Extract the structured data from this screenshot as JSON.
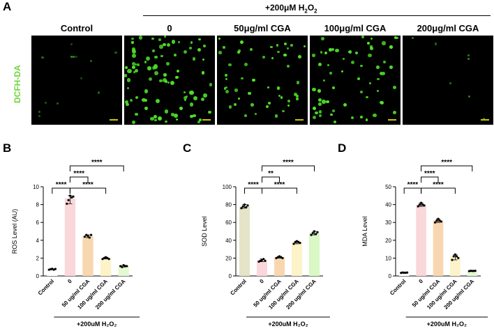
{
  "panel_a": {
    "letter": "A",
    "treatment_label": "+200μM H",
    "treatment_sub": "2",
    "treatment_tail": "O",
    "treatment_sub2": "2",
    "stain_label": "DCFH-DA",
    "columns": [
      "Control",
      "0",
      "50μg/ml CGA",
      "100μg/ml CGA",
      "200μg/ml CGA"
    ],
    "cell_density": [
      0.15,
      1.0,
      0.55,
      0.7,
      0.08
    ]
  },
  "panel_b_letter": "B",
  "panel_c_letter": "C",
  "panel_d_letter": "D",
  "chart_data": [
    {
      "type": "bar",
      "ylabel": "ROS Level (AU)",
      "categories": [
        "Control",
        "0",
        "50 ug/ml CGA",
        "100 ug/ml CGA",
        "200 ug/ml CGA"
      ],
      "values": [
        0.75,
        8.7,
        4.5,
        2.0,
        1.1
      ],
      "points": [
        [
          0.7,
          0.75,
          0.8,
          0.7,
          0.78
        ],
        [
          8.1,
          8.5,
          9.0,
          8.8,
          8.9
        ],
        [
          4.4,
          4.6,
          4.5,
          4.3,
          4.6
        ],
        [
          1.9,
          2.0,
          2.1,
          2.0,
          1.9
        ],
        [
          1.1,
          1.0,
          1.2,
          1.1,
          1.1
        ]
      ],
      "bar_colors": [
        "#ffffff",
        "#fad7da",
        "#f8d7b0",
        "#fdf3c8",
        "#e4f9d2"
      ],
      "ylim": [
        0,
        10
      ],
      "yticks": [
        0,
        2,
        4,
        6,
        8,
        10
      ],
      "treatment": "+200uM H₂O₂",
      "significance": [
        {
          "from": 0,
          "to": 1,
          "label": "****"
        },
        {
          "from": 1,
          "to": 2,
          "label": "****"
        },
        {
          "from": 1,
          "to": 3,
          "label": "****"
        },
        {
          "from": 1,
          "to": 4,
          "label": "****"
        }
      ]
    },
    {
      "type": "bar",
      "ylabel": "SOD Level",
      "categories": [
        "Control",
        "0",
        "50 ug/ml CGA",
        "100 ug/ml CGA",
        "200 ug/ml CGA"
      ],
      "values": [
        78,
        17.5,
        21,
        38,
        48
      ],
      "points": [
        [
          76,
          78,
          80,
          77,
          79
        ],
        [
          16,
          17,
          18,
          19,
          17
        ],
        [
          20,
          21,
          22,
          21,
          20
        ],
        [
          36,
          38,
          39,
          38,
          37
        ],
        [
          46,
          48,
          50,
          47,
          49
        ]
      ],
      "bar_colors": [
        "#e5e3c8",
        "#fad7da",
        "#f8d7b0",
        "#fdf3c8",
        "#d9f8c4"
      ],
      "ylim": [
        0,
        100
      ],
      "yticks": [
        0,
        20,
        40,
        60,
        80,
        100
      ],
      "treatment": "+200uM H₂O₂",
      "significance": [
        {
          "from": 0,
          "to": 1,
          "label": "****"
        },
        {
          "from": 1,
          "to": 2,
          "label": "**"
        },
        {
          "from": 1,
          "to": 3,
          "label": "****"
        },
        {
          "from": 1,
          "to": 4,
          "label": "****"
        }
      ]
    },
    {
      "type": "bar",
      "ylabel": "MDA Level",
      "categories": [
        "Control",
        "0",
        "50 ug/ml CGA",
        "100 ug/ml CGA",
        "200 ug/ml CGA"
      ],
      "values": [
        1.8,
        40,
        31,
        11,
        2.8
      ],
      "points": [
        [
          1.7,
          1.9,
          1.8,
          1.8,
          1.9
        ],
        [
          39,
          40,
          41,
          40,
          39.5
        ],
        [
          30,
          31,
          32,
          31,
          30.5
        ],
        [
          9,
          11,
          12,
          11,
          10
        ],
        [
          2.7,
          2.9,
          2.8,
          2.8,
          2.9
        ]
      ],
      "bar_colors": [
        "#ffffff",
        "#fad7da",
        "#f8d7b0",
        "#fdf3c8",
        "#e4f9d2"
      ],
      "ylim": [
        0,
        50
      ],
      "yticks": [
        0,
        10,
        20,
        30,
        40,
        50
      ],
      "treatment": "+200uM H₂O₂",
      "significance": [
        {
          "from": 0,
          "to": 1,
          "label": "****"
        },
        {
          "from": 1,
          "to": 2,
          "label": "****"
        },
        {
          "from": 1,
          "to": 3,
          "label": "****"
        },
        {
          "from": 1,
          "to": 4,
          "label": "****"
        }
      ]
    }
  ]
}
